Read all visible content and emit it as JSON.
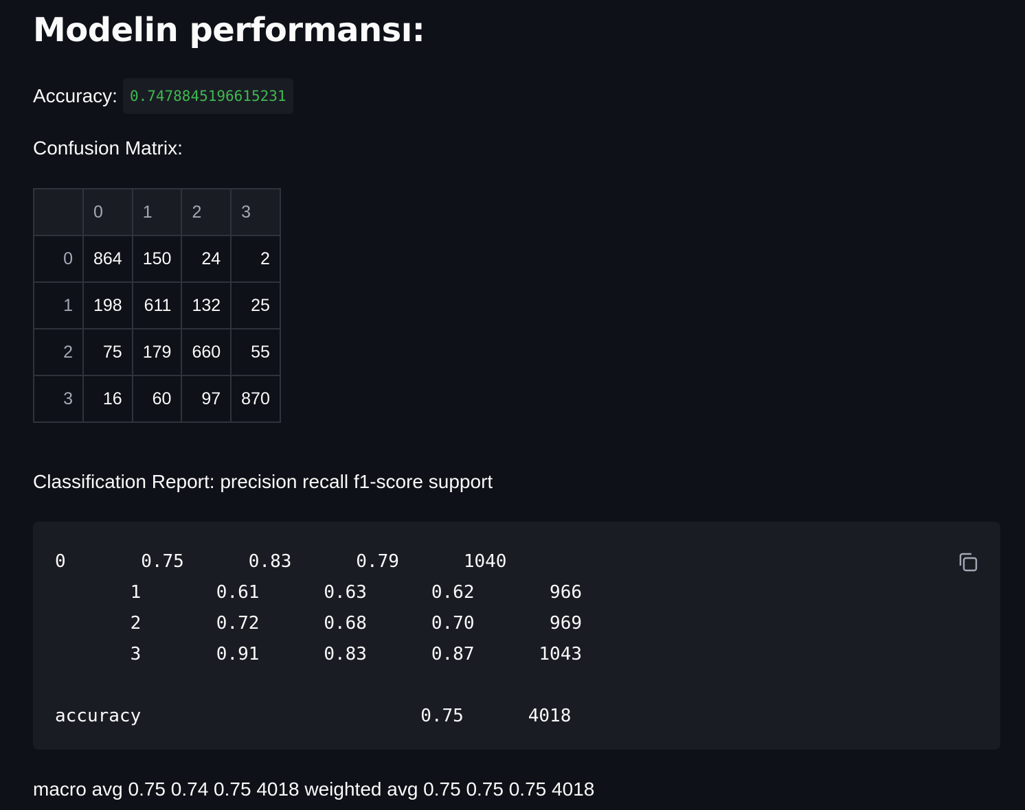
{
  "header": {
    "title": "Modelin performansı:"
  },
  "accuracy": {
    "label": "Accuracy:",
    "value": "0.7478845196615231"
  },
  "confusion_matrix": {
    "label": "Confusion Matrix:",
    "columns": [
      "0",
      "1",
      "2",
      "3"
    ],
    "rows": [
      {
        "index": "0",
        "values": [
          "864",
          "150",
          "24",
          "2"
        ]
      },
      {
        "index": "1",
        "values": [
          "198",
          "611",
          "132",
          "25"
        ]
      },
      {
        "index": "2",
        "values": [
          "75",
          "179",
          "660",
          "55"
        ]
      },
      {
        "index": "3",
        "values": [
          "16",
          "60",
          "97",
          "870"
        ]
      }
    ]
  },
  "classification_report": {
    "label": "Classification Report: precision recall f1-score support",
    "code_lines": [
      "0       0.75      0.83      0.79      1040",
      "       1       0.61      0.63      0.62       966",
      "       2       0.72      0.68      0.70       969",
      "       3       0.91      0.83      0.87      1043",
      "",
      "accuracy                          0.75      4018"
    ],
    "copy_icon": "copy-icon"
  },
  "footer": {
    "text": "macro avg 0.75 0.74 0.75 4018 weighted avg 0.75 0.75 0.75 4018"
  }
}
